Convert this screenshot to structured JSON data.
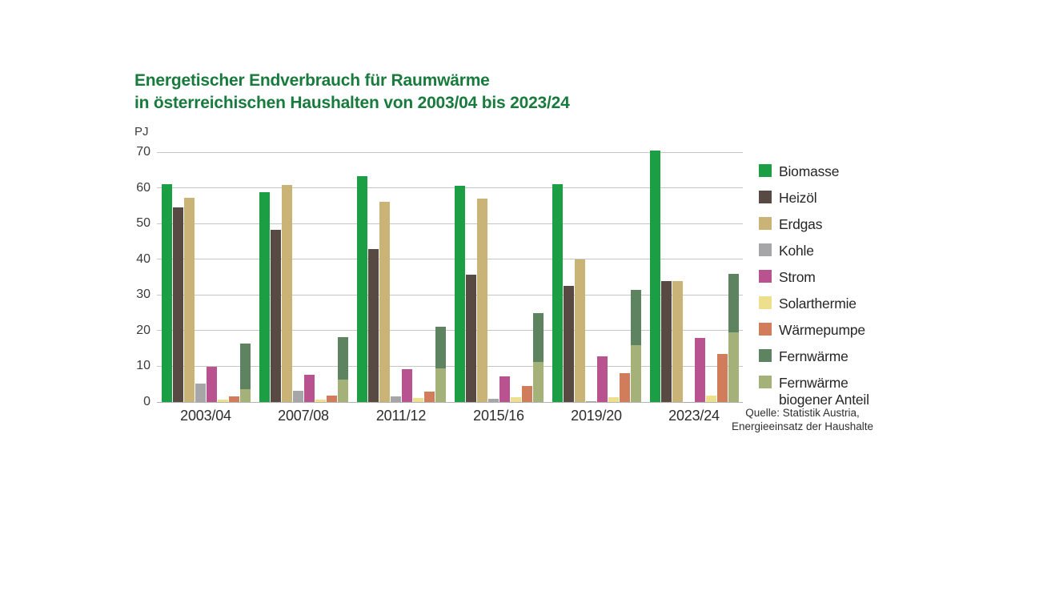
{
  "header": {
    "title_line1": "Energetischer Endverbrauch für Raumwärme",
    "title_line2": "in österreichischen Haushalten von 2003/04 bis 2023/24",
    "title_color": "#187a3c",
    "unit_label": "PJ"
  },
  "source": {
    "line1": "Quelle: Statistik Austria,",
    "line2": "Energieeinsatz der Haushalte"
  },
  "chart_data": {
    "type": "bar",
    "title": "Energetischer Endverbrauch für Raumwärme in österreichischen Haushalten von 2003/04 bis 2023/24",
    "ylabel": "PJ",
    "xlabel": "",
    "ylim": [
      0,
      70
    ],
    "yticks": [
      0,
      10,
      20,
      30,
      40,
      50,
      60,
      70
    ],
    "grid": true,
    "legend_position": "right",
    "categories": [
      "2003/04",
      "2007/08",
      "2011/12",
      "2015/16",
      "2019/20",
      "2023/24"
    ],
    "series": [
      {
        "name": "Biomasse",
        "color": "#1b9e44",
        "values": [
          61.0,
          58.8,
          63.3,
          60.5,
          61.0,
          70.5
        ]
      },
      {
        "name": "Heizöl",
        "color": "#584a43",
        "values": [
          54.5,
          48.2,
          42.8,
          35.7,
          32.5,
          34.0
        ]
      },
      {
        "name": "Erdgas",
        "color": "#c9b377",
        "values": [
          57.3,
          60.8,
          56.2,
          57.0,
          40.0,
          34.0
        ]
      },
      {
        "name": "Kohle",
        "color": "#a6a6a9",
        "values": [
          5.2,
          3.2,
          1.6,
          0.8,
          0.2,
          0.1
        ]
      },
      {
        "name": "Strom",
        "color": "#b9538f",
        "values": [
          9.8,
          7.6,
          9.2,
          7.1,
          12.9,
          18.0
        ]
      },
      {
        "name": "Solarthermie",
        "color": "#ecdf8d",
        "values": [
          0.7,
          0.7,
          1.1,
          1.4,
          1.3,
          1.7
        ]
      },
      {
        "name": "Wärmepumpe",
        "color": "#d17d5c",
        "values": [
          1.5,
          1.8,
          2.9,
          4.4,
          8.1,
          13.5
        ]
      },
      {
        "name": "Fernwärme",
        "color": "#5d8361",
        "values": [
          16.4,
          18.1,
          21.0,
          25.0,
          31.4,
          35.8
        ]
      },
      {
        "name": "Fernwärme biogener Anteil",
        "color": "#a4b27a",
        "values": [
          3.5,
          6.4,
          9.4,
          11.2,
          16.0,
          19.5
        ],
        "overlay_on": "Fernwärme"
      }
    ]
  },
  "legend": {
    "items": [
      {
        "label": "Biomasse",
        "color": "#1b9e44"
      },
      {
        "label": "Heizöl",
        "color": "#584a43"
      },
      {
        "label": "Erdgas",
        "color": "#c9b377"
      },
      {
        "label": "Kohle",
        "color": "#a6a6a9"
      },
      {
        "label": "Strom",
        "color": "#b9538f"
      },
      {
        "label": "Solarthermie",
        "color": "#ecdf8d"
      },
      {
        "label": "Wärmepumpe",
        "color": "#d17d5c"
      },
      {
        "label": "Fernwärme",
        "color": "#5d8361"
      },
      {
        "label": "Fernwärme\nbiogener Anteil",
        "color": "#a4b27a"
      }
    ]
  }
}
